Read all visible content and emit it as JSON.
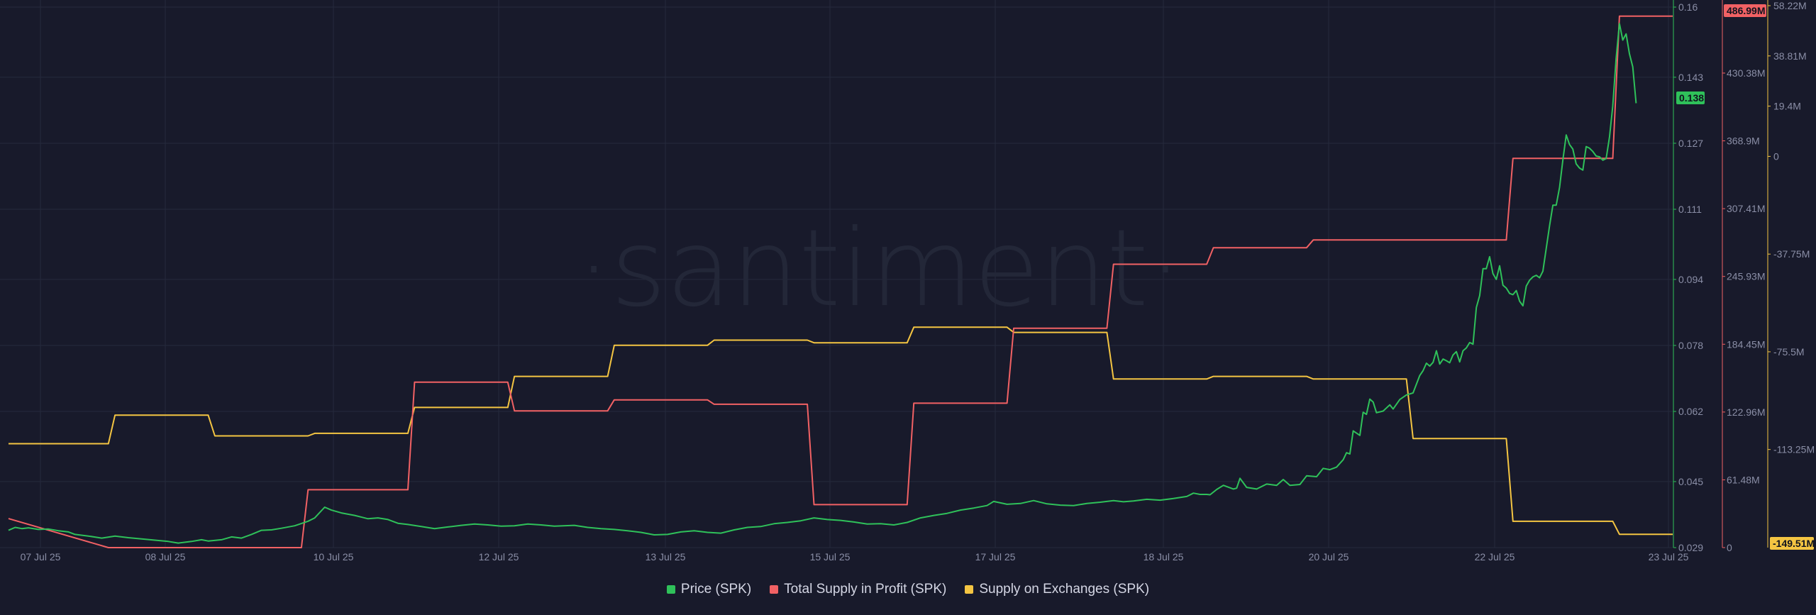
{
  "watermark": "·santiment·",
  "colors": {
    "price": "#2fc15a",
    "profit": "#f16164",
    "exchanges": "#f4c542",
    "grid": "#262a3d",
    "background": "#181a2b"
  },
  "legend": [
    {
      "label": "Price (SPK)",
      "color": "#2fc15a"
    },
    {
      "label": "Total Supply in Profit (SPK)",
      "color": "#f16164"
    },
    {
      "label": "Supply on Exchanges (SPK)",
      "color": "#f4c542"
    }
  ],
  "chart_data": {
    "type": "line",
    "x_ticks": [
      "07 Jul 25",
      "08 Jul 25",
      "10 Jul 25",
      "12 Jul 25",
      "13 Jul 25",
      "15 Jul 25",
      "17 Jul 25",
      "18 Jul 25",
      "20 Jul 25",
      "22 Jul 25",
      "23 Jul 25"
    ],
    "x_range": [
      "2025-07-07",
      "2025-07-23"
    ],
    "axes": {
      "price": {
        "ticks": [
          "0.16",
          "0.143",
          "0.127",
          "0.111",
          "0.094",
          "0.078",
          "0.062",
          "0.045",
          "0.029"
        ],
        "range": [
          0.029,
          0.16
        ],
        "current": "0.138"
      },
      "profit": {
        "ticks": [
          "430.38M",
          "368.9M",
          "307.41M",
          "245.93M",
          "184.45M",
          "122.96M",
          "61.48M",
          "0"
        ],
        "range": [
          0,
          486.99
        ],
        "unit": "M",
        "current": "486.99M"
      },
      "exchanges": {
        "ticks": [
          "58.22M",
          "38.81M",
          "19.4M",
          "0",
          "-37.75M",
          "-75.5M",
          "-113.25M"
        ],
        "range": [
          -149.51,
          58.22
        ],
        "unit": "M",
        "current": "-149.51M"
      }
    },
    "grid": true,
    "legend_position": "bottom",
    "series": [
      {
        "name": "Price (SPK)",
        "axis": "price",
        "points": [
          [
            0,
            0.0332
          ],
          [
            0.1,
            0.0339
          ],
          [
            0.2,
            0.0336
          ],
          [
            0.3,
            0.0338
          ],
          [
            0.45,
            0.0334
          ],
          [
            0.6,
            0.0335
          ],
          [
            0.75,
            0.0331
          ],
          [
            0.9,
            0.0328
          ],
          [
            1,
            0.0322
          ],
          [
            1.2,
            0.0318
          ],
          [
            1.4,
            0.0313
          ],
          [
            1.6,
            0.0318
          ],
          [
            1.8,
            0.0314
          ],
          [
            2,
            0.0311
          ],
          [
            2.2,
            0.0308
          ],
          [
            2.4,
            0.0305
          ],
          [
            2.55,
            0.0301
          ],
          [
            2.75,
            0.0305
          ],
          [
            2.9,
            0.0309
          ],
          [
            3,
            0.0306
          ],
          [
            3.2,
            0.0309
          ],
          [
            3.35,
            0.0316
          ],
          [
            3.5,
            0.0313
          ],
          [
            3.65,
            0.0322
          ],
          [
            3.8,
            0.0332
          ],
          [
            3.95,
            0.0333
          ],
          [
            4.1,
            0.0337
          ],
          [
            4.3,
            0.0343
          ],
          [
            4.5,
            0.0354
          ],
          [
            4.6,
            0.0362
          ],
          [
            4.75,
            0.0388
          ],
          [
            4.85,
            0.0381
          ],
          [
            5.0,
            0.0374
          ],
          [
            5.2,
            0.0368
          ],
          [
            5.4,
            0.036
          ],
          [
            5.55,
            0.0362
          ],
          [
            5.7,
            0.0358
          ],
          [
            5.85,
            0.0349
          ],
          [
            6.0,
            0.0346
          ],
          [
            6.2,
            0.0341
          ],
          [
            6.4,
            0.0336
          ],
          [
            6.6,
            0.034
          ],
          [
            6.8,
            0.0344
          ],
          [
            7.0,
            0.0347
          ],
          [
            7.2,
            0.0345
          ],
          [
            7.4,
            0.0342
          ],
          [
            7.6,
            0.0343
          ],
          [
            7.8,
            0.0347
          ],
          [
            8.0,
            0.0345
          ],
          [
            8.2,
            0.0342
          ],
          [
            8.5,
            0.0344
          ],
          [
            8.7,
            0.0339
          ],
          [
            8.9,
            0.0336
          ],
          [
            9.1,
            0.0334
          ],
          [
            9.3,
            0.0331
          ],
          [
            9.5,
            0.0327
          ],
          [
            9.7,
            0.0321
          ],
          [
            9.9,
            0.0322
          ],
          [
            10.1,
            0.0328
          ],
          [
            10.3,
            0.0331
          ],
          [
            10.5,
            0.0327
          ],
          [
            10.7,
            0.0325
          ],
          [
            10.9,
            0.0333
          ],
          [
            11.1,
            0.0339
          ],
          [
            11.3,
            0.0341
          ],
          [
            11.5,
            0.0348
          ],
          [
            11.7,
            0.0351
          ],
          [
            11.9,
            0.0355
          ],
          [
            12.1,
            0.0362
          ],
          [
            12.3,
            0.0358
          ],
          [
            12.5,
            0.0356
          ],
          [
            12.7,
            0.0352
          ],
          [
            12.9,
            0.0347
          ],
          [
            13.1,
            0.0348
          ],
          [
            13.3,
            0.0345
          ],
          [
            13.5,
            0.0351
          ],
          [
            13.7,
            0.0362
          ],
          [
            13.9,
            0.0368
          ],
          [
            14.1,
            0.0373
          ],
          [
            14.3,
            0.0381
          ],
          [
            14.5,
            0.0386
          ],
          [
            14.7,
            0.0392
          ],
          [
            14.8,
            0.0402
          ],
          [
            15.0,
            0.0395
          ],
          [
            15.2,
            0.0397
          ],
          [
            15.4,
            0.0404
          ],
          [
            15.6,
            0.0396
          ],
          [
            15.8,
            0.0393
          ],
          [
            16.0,
            0.0392
          ],
          [
            16.2,
            0.0397
          ],
          [
            16.4,
            0.04
          ],
          [
            16.6,
            0.0404
          ],
          [
            16.75,
            0.0401
          ],
          [
            16.9,
            0.0403
          ],
          [
            17.1,
            0.0407
          ],
          [
            17.3,
            0.0405
          ],
          [
            17.5,
            0.0409
          ],
          [
            17.7,
            0.0414
          ],
          [
            17.8,
            0.0422
          ],
          [
            17.9,
            0.0419
          ],
          [
            18.0,
            0.0419
          ],
          [
            18.05,
            0.0418
          ],
          [
            18.15,
            0.0431
          ],
          [
            18.25,
            0.0441
          ],
          [
            18.4,
            0.0432
          ],
          [
            18.45,
            0.0434
          ],
          [
            18.5,
            0.0458
          ],
          [
            18.6,
            0.0436
          ],
          [
            18.75,
            0.0432
          ],
          [
            18.9,
            0.0444
          ],
          [
            19.05,
            0.0441
          ],
          [
            19.15,
            0.0455
          ],
          [
            19.25,
            0.0441
          ],
          [
            19.4,
            0.0443
          ],
          [
            19.5,
            0.0464
          ],
          [
            19.65,
            0.0462
          ],
          [
            19.75,
            0.0482
          ],
          [
            19.85,
            0.0479
          ],
          [
            19.95,
            0.0485
          ],
          [
            20.05,
            0.0503
          ],
          [
            20.1,
            0.052
          ],
          [
            20.15,
            0.0517
          ],
          [
            20.2,
            0.0573
          ],
          [
            20.3,
            0.0562
          ],
          [
            20.35,
            0.0618
          ],
          [
            20.4,
            0.0613
          ],
          [
            20.45,
            0.065
          ],
          [
            20.5,
            0.0643
          ],
          [
            20.55,
            0.0617
          ],
          [
            20.65,
            0.0621
          ],
          [
            20.75,
            0.0636
          ],
          [
            20.8,
            0.0626
          ],
          [
            20.9,
            0.0649
          ],
          [
            21.0,
            0.066
          ],
          [
            21.1,
            0.0665
          ],
          [
            21.2,
            0.0707
          ],
          [
            21.25,
            0.0719
          ],
          [
            21.3,
            0.0737
          ],
          [
            21.35,
            0.073
          ],
          [
            21.4,
            0.0739
          ],
          [
            21.45,
            0.0767
          ],
          [
            21.5,
            0.0735
          ],
          [
            21.55,
            0.0747
          ],
          [
            21.6,
            0.0743
          ],
          [
            21.65,
            0.0738
          ],
          [
            21.7,
            0.0757
          ],
          [
            21.75,
            0.0765
          ],
          [
            21.8,
            0.074
          ],
          [
            21.85,
            0.0767
          ],
          [
            21.9,
            0.0774
          ],
          [
            21.95,
            0.0787
          ],
          [
            22.0,
            0.0783
          ],
          [
            22.05,
            0.0872
          ],
          [
            22.1,
            0.0901
          ],
          [
            22.15,
            0.0966
          ],
          [
            22.2,
            0.0966
          ],
          [
            22.25,
            0.0995
          ],
          [
            22.3,
            0.0954
          ],
          [
            22.35,
            0.094
          ],
          [
            22.4,
            0.0973
          ],
          [
            22.45,
            0.0926
          ],
          [
            22.5,
            0.0919
          ],
          [
            22.55,
            0.0906
          ],
          [
            22.6,
            0.0903
          ],
          [
            22.65,
            0.0913
          ],
          [
            22.7,
            0.0887
          ],
          [
            22.75,
            0.0876
          ],
          [
            22.8,
            0.0924
          ],
          [
            22.85,
            0.0938
          ],
          [
            22.9,
            0.0946
          ],
          [
            22.95,
            0.095
          ],
          [
            23.0,
            0.0944
          ],
          [
            23.05,
            0.096
          ],
          [
            23.1,
            0.1015
          ],
          [
            23.15,
            0.107
          ],
          [
            23.2,
            0.112
          ],
          [
            23.25,
            0.112
          ],
          [
            23.3,
            0.1163
          ],
          [
            23.35,
            0.123
          ],
          [
            23.4,
            0.129
          ],
          [
            23.45,
            0.1267
          ],
          [
            23.5,
            0.1256
          ],
          [
            23.55,
            0.122
          ],
          [
            23.6,
            0.121
          ],
          [
            23.65,
            0.1205
          ],
          [
            23.7,
            0.1262
          ],
          [
            23.75,
            0.1258
          ],
          [
            23.8,
            0.125
          ],
          [
            23.85,
            0.1239
          ],
          [
            23.9,
            0.1237
          ],
          [
            23.95,
            0.1229
          ],
          [
            24.0,
            0.1233
          ],
          [
            24.05,
            0.1285
          ],
          [
            24.1,
            0.136
          ],
          [
            24.15,
            0.1475
          ],
          [
            24.2,
            0.156
          ],
          [
            24.25,
            0.152
          ],
          [
            24.3,
            0.1535
          ],
          [
            24.35,
            0.1487
          ],
          [
            24.4,
            0.1455
          ],
          [
            24.45,
            0.1367
          ]
        ]
      },
      {
        "name": "Total Supply in Profit (SPK)",
        "axis": "profit",
        "steps": [
          [
            0,
            26.3
          ],
          [
            1.5,
            0
          ],
          [
            4.4,
            0
          ],
          [
            4.5,
            52.5
          ],
          [
            6,
            52.5
          ],
          [
            6.1,
            150
          ],
          [
            7.5,
            150
          ],
          [
            7.6,
            124
          ],
          [
            9,
            124
          ],
          [
            9.1,
            134
          ],
          [
            10.5,
            134
          ],
          [
            10.6,
            130
          ],
          [
            12,
            130
          ],
          [
            12.1,
            39
          ],
          [
            13.5,
            39
          ],
          [
            13.6,
            131
          ],
          [
            15,
            131
          ],
          [
            15.1,
            199
          ],
          [
            16.5,
            199
          ],
          [
            16.6,
            257
          ],
          [
            18,
            257
          ],
          [
            18.1,
            272
          ],
          [
            19.5,
            272
          ],
          [
            19.6,
            279
          ],
          [
            22.5,
            279
          ],
          [
            22.6,
            353
          ],
          [
            24.1,
            353
          ],
          [
            24.2,
            482
          ],
          [
            25,
            482
          ]
        ]
      },
      {
        "name": "Supply on Exchanges (SPK)",
        "axis": "exchanges",
        "steps": [
          [
            0,
            -111
          ],
          [
            1.5,
            -111
          ],
          [
            1.6,
            -100
          ],
          [
            3,
            -100
          ],
          [
            3.1,
            -108
          ],
          [
            4.5,
            -108
          ],
          [
            4.6,
            -107
          ],
          [
            6,
            -107
          ],
          [
            6.1,
            -97
          ],
          [
            7.5,
            -97
          ],
          [
            7.6,
            -85
          ],
          [
            9,
            -85
          ],
          [
            9.1,
            -73
          ],
          [
            10.5,
            -73
          ],
          [
            10.6,
            -71
          ],
          [
            12,
            -71
          ],
          [
            12.1,
            -72
          ],
          [
            13.5,
            -72
          ],
          [
            13.6,
            -66
          ],
          [
            15,
            -66
          ],
          [
            15.1,
            -68
          ],
          [
            16.5,
            -68
          ],
          [
            16.6,
            -86
          ],
          [
            18,
            -86
          ],
          [
            18.1,
            -85
          ],
          [
            19.5,
            -85
          ],
          [
            19.6,
            -86
          ],
          [
            21,
            -86
          ],
          [
            21.1,
            -109
          ],
          [
            22.5,
            -109
          ],
          [
            22.6,
            -141
          ],
          [
            24.1,
            -141
          ],
          [
            24.2,
            -146
          ],
          [
            25,
            -146
          ]
        ]
      }
    ]
  }
}
